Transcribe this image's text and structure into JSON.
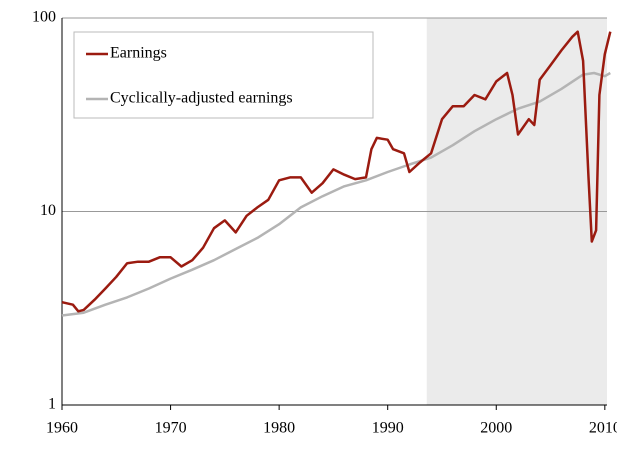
{
  "chart_data": {
    "type": "line",
    "series": [
      {
        "name": "Earnings",
        "color": "#9b1b10",
        "x": [
          1960,
          1961,
          1961.5,
          1962,
          1963,
          1964,
          1965,
          1966,
          1967,
          1968,
          1969,
          1970,
          1971,
          1972,
          1973,
          1974,
          1975,
          1976,
          1977,
          1978,
          1979,
          1980,
          1981,
          1982,
          1983,
          1984,
          1985,
          1986,
          1987,
          1988,
          1988.5,
          1989,
          1990,
          1990.5,
          1991.5,
          1992,
          1993,
          1994,
          1995,
          1996,
          1997,
          1998,
          1999,
          2000,
          2001,
          2001.5,
          2002,
          2003,
          2003.5,
          2004,
          2005,
          2006,
          2007,
          2007.5,
          2008,
          2008.5,
          2008.8,
          2009.2,
          2009.5,
          2010,
          2010.5
        ],
        "values": [
          3.4,
          3.3,
          3.05,
          3.1,
          3.5,
          4.0,
          4.6,
          5.4,
          5.5,
          5.5,
          5.8,
          5.8,
          5.2,
          5.6,
          6.5,
          8.2,
          9.0,
          7.8,
          9.5,
          10.5,
          11.5,
          14.5,
          15.0,
          15.0,
          12.5,
          14.0,
          16.5,
          15.5,
          14.7,
          15.0,
          21,
          24,
          23.5,
          21,
          20,
          16,
          18,
          20,
          30,
          35,
          35,
          40,
          38,
          47,
          52,
          40,
          25,
          30,
          28,
          48,
          57,
          68,
          80,
          85,
          60,
          15,
          7,
          8,
          40,
          65,
          85
        ]
      },
      {
        "name": "Cyclically-adjusted earnings",
        "color": "#b4b4b4",
        "x": [
          1960,
          1962,
          1964,
          1966,
          1968,
          1970,
          1972,
          1974,
          1976,
          1978,
          1980,
          1982,
          1984,
          1986,
          1988,
          1990,
          1992,
          1994,
          1996,
          1998,
          2000,
          2002,
          2004,
          2006,
          2008,
          2009,
          2010,
          2010.5
        ],
        "values": [
          2.9,
          3.0,
          3.3,
          3.6,
          4.0,
          4.5,
          5.0,
          5.6,
          6.4,
          7.3,
          8.6,
          10.5,
          12.0,
          13.5,
          14.5,
          16.0,
          17.5,
          19.0,
          22,
          26,
          30,
          34,
          37,
          43,
          51,
          52,
          50,
          52
        ]
      }
    ],
    "xlim": [
      1960,
      2010.2
    ],
    "xticks": [
      1960,
      1970,
      1980,
      1990,
      2000,
      2010
    ],
    "ylim": [
      1,
      100
    ],
    "yticks": [
      1,
      10,
      100
    ],
    "log_y": true,
    "grid": true,
    "shaded_x": [
      1993.6,
      2010.2
    ],
    "legend": "upper left"
  }
}
